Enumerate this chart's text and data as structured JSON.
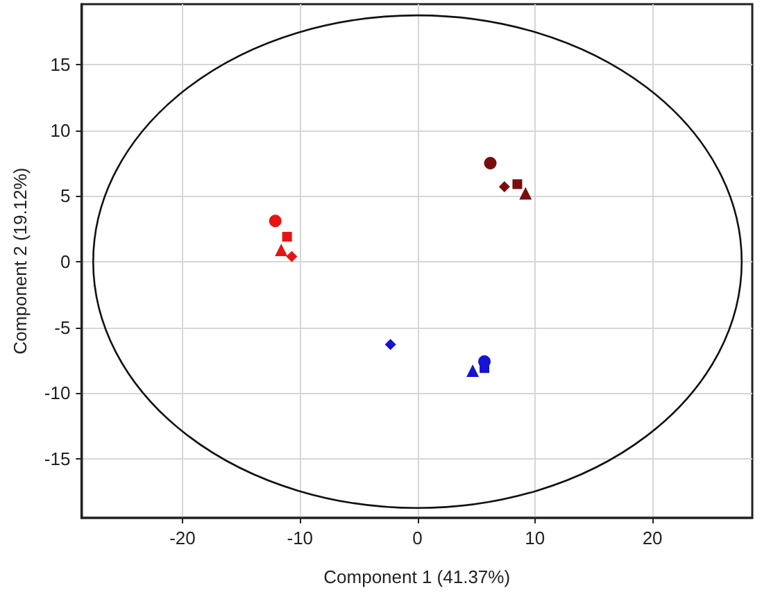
{
  "chart_data": {
    "type": "scatter",
    "xlabel": "Component 1 (41.37%)",
    "ylabel": "Component 2 (19.12%)",
    "xlim": [
      -28.6,
      28.5
    ],
    "ylim": [
      -19.5,
      19.6
    ],
    "xticks": [
      -20,
      -10,
      0,
      10,
      20
    ],
    "yticks": [
      -15,
      -10,
      -5,
      0,
      5,
      10,
      15
    ],
    "grid": true,
    "series": [
      {
        "marker": "circle",
        "x": [
          -12.1,
          6.2,
          5.7
        ],
        "values": [
          3.1,
          7.5,
          -7.6
        ],
        "colors": [
          "#e81414",
          "#7a0c0c",
          "#1414d2"
        ]
      },
      {
        "marker": "square",
        "x": [
          -11.1,
          8.5,
          5.7
        ],
        "values": [
          1.9,
          5.9,
          -8.1
        ],
        "colors": [
          "#e81414",
          "#7a0c0c",
          "#1414d2"
        ]
      },
      {
        "marker": "triangle",
        "x": [
          -11.6,
          9.2,
          4.7
        ],
        "values": [
          0.9,
          5.2,
          -8.3
        ],
        "colors": [
          "#e81414",
          "#7a0c0c",
          "#1414d2"
        ]
      },
      {
        "marker": "diamond",
        "x": [
          -10.7,
          7.4,
          -2.3
        ],
        "values": [
          0.4,
          5.7,
          -6.3
        ],
        "colors": [
          "#e81414",
          "#7a0c0c",
          "#1414d2"
        ]
      }
    ]
  }
}
